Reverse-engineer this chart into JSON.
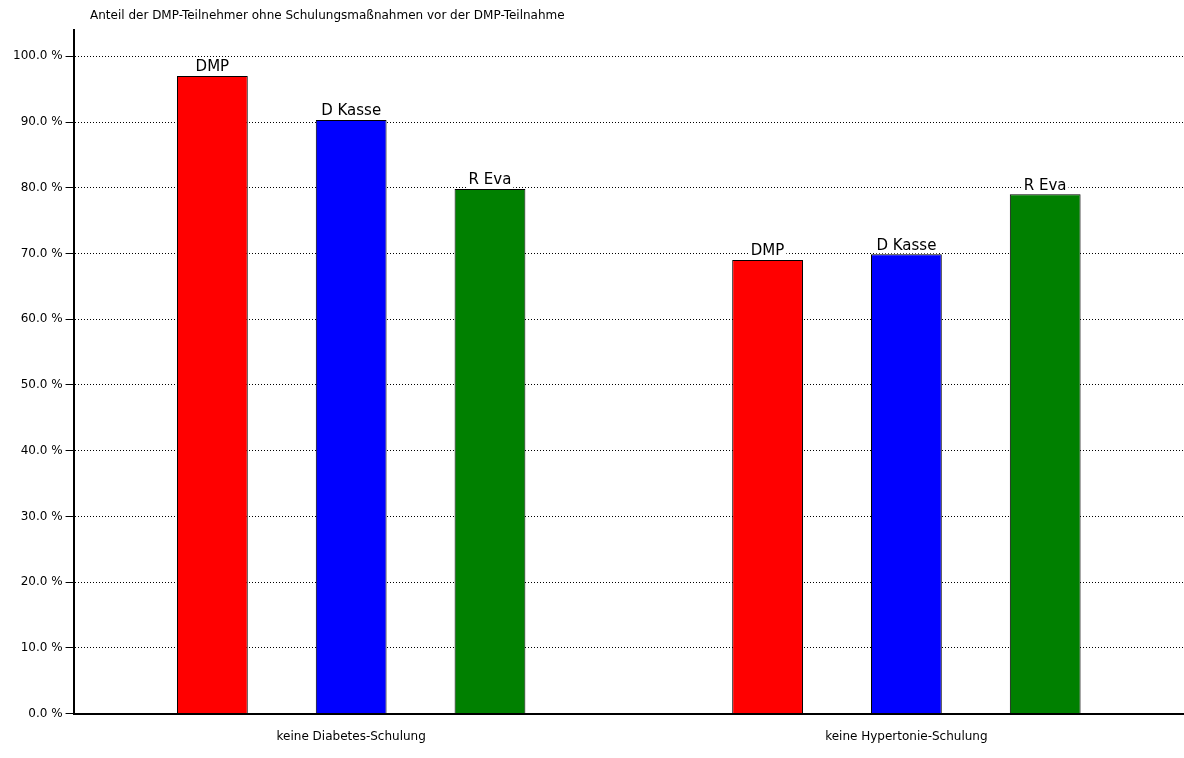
{
  "chart_data": {
    "type": "bar",
    "title": "Anteil der DMP-Teilnehmer ohne Schulungsmaßnahmen vor der DMP-Teilnahme",
    "categories": [
      "keine Diabetes-Schulung",
      "keine Hypertonie-Schulung"
    ],
    "series": [
      {
        "name": "DMP",
        "color": "#ff0000",
        "values": [
          97.0,
          69.0
        ]
      },
      {
        "name": "D Kasse",
        "color": "#0000ff",
        "values": [
          90.3,
          69.9
        ]
      },
      {
        "name": "R Eva",
        "color": "#008000",
        "values": [
          79.8,
          79.0
        ]
      }
    ],
    "ylim": [
      0,
      104
    ],
    "yticks": [
      {
        "value": 0,
        "label": "0.0 %"
      },
      {
        "value": 10,
        "label": "10.0 %"
      },
      {
        "value": 20,
        "label": "20.0 %"
      },
      {
        "value": 30,
        "label": "30.0 %"
      },
      {
        "value": 40,
        "label": "40.0 %"
      },
      {
        "value": 50,
        "label": "50.0 %"
      },
      {
        "value": 60,
        "label": "60.0 %"
      },
      {
        "value": 70,
        "label": "70.0 %"
      },
      {
        "value": 80,
        "label": "80.0 %"
      },
      {
        "value": 90,
        "label": "90.0 %"
      },
      {
        "value": 100,
        "label": "100.0 %"
      }
    ],
    "grid": "y",
    "legend": false
  }
}
